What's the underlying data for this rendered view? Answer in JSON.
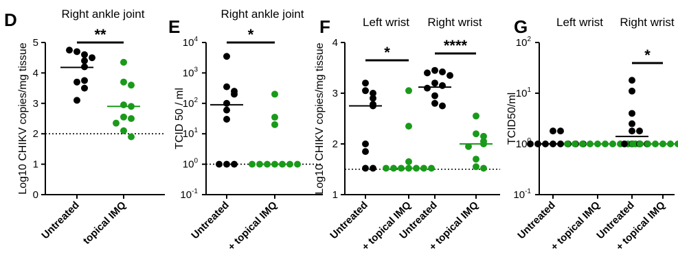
{
  "chart_data": [
    {
      "panel": "D",
      "type": "scatter",
      "title": "Right ankle joint",
      "ylabel": "Log10 CHIKV copies/mg tissue",
      "ylim": [
        0,
        5
      ],
      "yticks": [
        "0",
        "1",
        "2",
        "3",
        "4",
        "5"
      ],
      "ytick_values": [
        0,
        1,
        2,
        3,
        4,
        5
      ],
      "y_scale": "linear",
      "categories": [
        "Untreated",
        "topical IMQ"
      ],
      "reference_line": 2,
      "series": [
        {
          "category": "Untreated",
          "color": "#000000",
          "values": [
            4.7,
            4.6,
            4.75,
            4.4,
            4.5,
            4.2,
            3.7,
            3.75,
            3.5,
            3.1
          ],
          "median": 4.18
        },
        {
          "category": "topical IMQ",
          "color": "#1a9a1a",
          "values": [
            4.35,
            3.7,
            3.6,
            2.95,
            2.9,
            2.55,
            2.5,
            2.35,
            2.1,
            1.9
          ],
          "median": 2.9
        }
      ],
      "significance": [
        {
          "between": [
            "Untreated",
            "topical IMQ"
          ],
          "label": "**"
        }
      ]
    },
    {
      "panel": "E",
      "type": "scatter",
      "title": "Right ankle joint",
      "ylabel": "TCID 50 / ml",
      "ylim": [
        0.1,
        10000
      ],
      "yticks": [
        {
          "base": "10",
          "exp": "4"
        },
        {
          "base": "10",
          "exp": "3"
        },
        {
          "base": "10",
          "exp": "2"
        },
        {
          "base": "10",
          "exp": "1"
        },
        {
          "base": "10",
          "exp": "0"
        },
        {
          "base": "10",
          "exp": "-1"
        }
      ],
      "ytick_values": [
        10000,
        1000,
        100,
        10,
        1,
        0.1
      ],
      "y_scale": "log",
      "categories": [
        "Untreated",
        "+ topical IMQ"
      ],
      "reference_line": 1,
      "series": [
        {
          "category": "Untreated",
          "color": "#000000",
          "values": [
            3500,
            350,
            250,
            200,
            100,
            60,
            30,
            1,
            1,
            1
          ],
          "median": 90
        },
        {
          "category": "+ topical IMQ",
          "color": "#1a9a1a",
          "values": [
            200,
            35,
            20,
            1,
            1,
            1,
            1,
            1,
            1,
            1
          ],
          "median": 1
        }
      ],
      "significance": [
        {
          "between": [
            "Untreated",
            "+ topical IMQ"
          ],
          "label": "*"
        }
      ]
    },
    {
      "panel": "F",
      "type": "scatter",
      "titles": [
        "Left wrist",
        "Right wrist"
      ],
      "ylabel": "Log10 CHIKV copies/mg tissue",
      "ylim": [
        1,
        4
      ],
      "yticks": [
        "1",
        "2",
        "3",
        "4"
      ],
      "ytick_values": [
        1,
        2,
        3,
        4
      ],
      "y_scale": "linear",
      "categories": [
        "Untreated",
        "+ topical IMQ",
        "Untreated",
        "+ topical IMQ"
      ],
      "reference_line": 1.5,
      "series": [
        {
          "category": "Untreated",
          "color": "#000000",
          "values": [
            3.2,
            3.05,
            3.0,
            2.9,
            2.78,
            2.75,
            2.0,
            1.85,
            1.52,
            1.52
          ],
          "median": 2.75
        },
        {
          "category": "+ topical IMQ",
          "color": "#1a9a1a",
          "values": [
            3.05,
            2.35,
            1.65,
            1.52,
            1.52,
            1.52,
            1.52,
            1.52,
            1.52,
            1.52
          ],
          "median": 1.52
        },
        {
          "category": "Untreated",
          "color": "#000000",
          "values": [
            3.45,
            3.42,
            3.4,
            3.35,
            3.2,
            3.15,
            3.1,
            2.95,
            2.8,
            2.75
          ],
          "median": 3.12
        },
        {
          "category": "+ topical IMQ",
          "color": "#1a9a1a",
          "values": [
            2.55,
            2.2,
            2.15,
            2.05,
            2.0,
            1.95,
            1.7,
            1.55,
            1.52
          ],
          "median": 2.0
        }
      ],
      "significance": [
        {
          "between": [
            0,
            1
          ],
          "label": "*"
        },
        {
          "between": [
            2,
            3
          ],
          "label": "****"
        }
      ]
    },
    {
      "panel": "G",
      "type": "scatter",
      "titles": [
        "Left wrist",
        "Right wrist"
      ],
      "ylabel": "TCID50/ml",
      "ylim": [
        0.1,
        100
      ],
      "yticks": [
        {
          "base": "10",
          "exp": "2"
        },
        {
          "base": "10",
          "exp": "1"
        },
        {
          "base": "10",
          "exp": "0"
        },
        {
          "base": "10",
          "exp": "-1"
        }
      ],
      "ytick_values": [
        100,
        10,
        1,
        0.1
      ],
      "y_scale": "log",
      "categories": [
        "Untreated",
        "+ topical IMQ",
        "Untreated",
        "+ topical IMQ"
      ],
      "reference_line": 1,
      "series": [
        {
          "category": "Untreated",
          "color": "#000000",
          "values": [
            1.8,
            1.8,
            1,
            1,
            1,
            1,
            1,
            1,
            1,
            1
          ],
          "median": 1
        },
        {
          "category": "+ topical IMQ",
          "color": "#1a9a1a",
          "values": [
            1,
            1,
            1,
            1,
            1,
            1,
            1,
            1,
            1,
            1
          ],
          "median": 1
        },
        {
          "category": "Untreated",
          "color": "#000000",
          "values": [
            18,
            11,
            4,
            2.5,
            1.8,
            1.8,
            1,
            1,
            1,
            1
          ],
          "median": 1.4
        },
        {
          "category": "+ topical IMQ",
          "color": "#1a9a1a",
          "values": [
            1,
            1,
            1,
            1,
            1,
            1,
            1,
            1,
            1,
            1
          ],
          "median": 1
        }
      ],
      "significance": [
        {
          "between": [
            2,
            3
          ],
          "label": "*"
        }
      ]
    }
  ]
}
